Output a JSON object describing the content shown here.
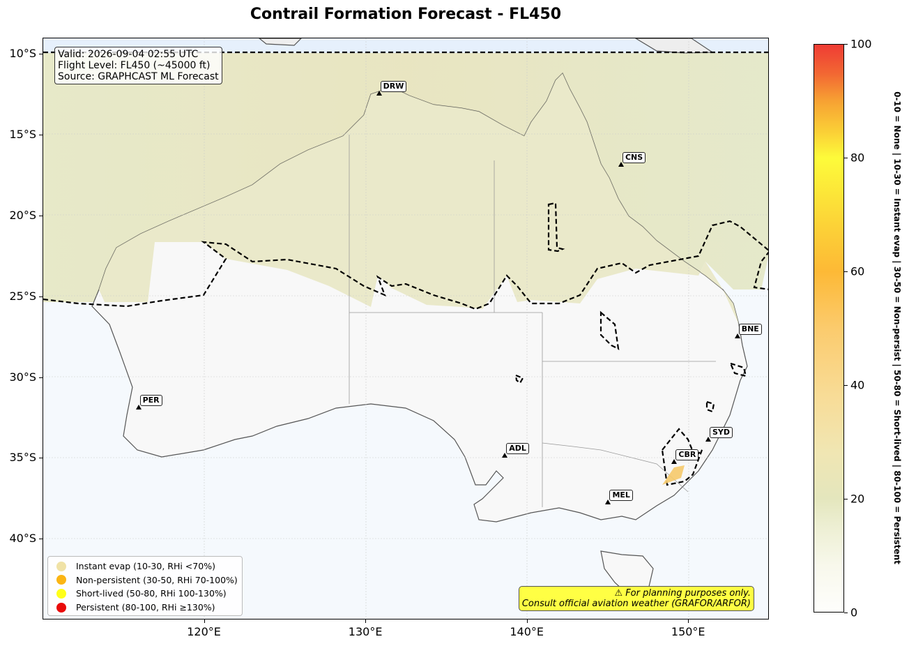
{
  "title": "Contrail Formation Forecast - FL450",
  "info": {
    "valid": "Valid: 2026-09-04 02:55 UTC",
    "level": "Flight Level: FL450 (~45000 ft)",
    "source": "Source: GRAPHCAST ML Forecast"
  },
  "y_ticks": [
    "10°S",
    "15°S",
    "20°S",
    "25°S",
    "30°S",
    "35°S",
    "40°S"
  ],
  "x_ticks": [
    "120°E",
    "130°E",
    "140°E",
    "150°E"
  ],
  "cities": [
    {
      "code": "DRW",
      "lon": 130.8,
      "lat": -12.5
    },
    {
      "code": "CNS",
      "lon": 145.8,
      "lat": -16.9
    },
    {
      "code": "BNE",
      "lon": 153.0,
      "lat": -27.5
    },
    {
      "code": "PER",
      "lon": 115.9,
      "lat": -31.9
    },
    {
      "code": "SYD",
      "lon": 151.2,
      "lat": -33.9
    },
    {
      "code": "ADL",
      "lon": 138.6,
      "lat": -34.9
    },
    {
      "code": "CBR",
      "lon": 149.1,
      "lat": -35.3
    },
    {
      "code": "MEL",
      "lon": 145.0,
      "lat": -37.8
    }
  ],
  "legend": [
    {
      "label": "Instant evap (10-30, RHi <70%)",
      "color": "#f0e2a6"
    },
    {
      "label": "Non-persistent (30-50, RHi 70-100%)",
      "color": "#fbb514"
    },
    {
      "label": "Short-lived (50-80, RHi 100-130%)",
      "color": "#ffff1a"
    },
    {
      "label": "Persistent (80-100, RHi ≥130%)",
      "color": "#e90a0a"
    }
  ],
  "note": {
    "line1": "⚠ For planning purposes only.",
    "line2": "Consult official aviation weather (GRAFOR/ARFOR)"
  },
  "colorbar": {
    "ticks": [
      "0",
      "20",
      "40",
      "60",
      "80",
      "100"
    ],
    "label": "0-10 = None  |  10-30 = Instant evap  |  30-50 = Non-persist  |  50-80 = Short-lived  |  80-100 = Persistent"
  },
  "map_extent": {
    "lon": [
      110,
      155
    ],
    "lat": [
      -45,
      -9
    ]
  }
}
